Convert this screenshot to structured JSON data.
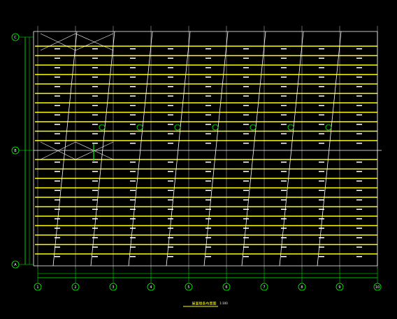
{
  "grid_axes": {
    "columns": [
      "1",
      "2",
      "3",
      "4",
      "5",
      "6",
      "7",
      "8",
      "9",
      "10"
    ],
    "rows": [
      "A",
      "B",
      "C"
    ]
  },
  "title": "屋面檩条布置图",
  "scale": "1:100"
}
